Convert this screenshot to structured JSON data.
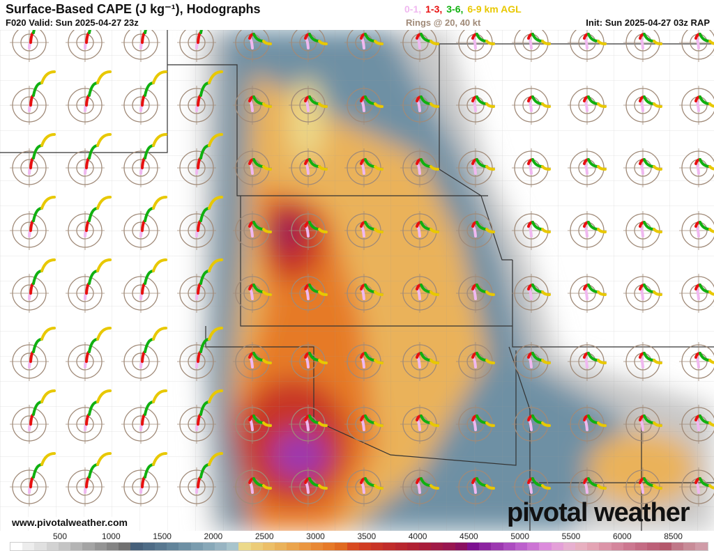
{
  "header": {
    "title": "Surface-Based CAPE (J kg⁻¹), Hodographs",
    "valid": "F020 Valid: Sun 2025-04-27 23z",
    "init": "Init: Sun 2025-04-27 03z RAP",
    "rings": "Rings @ 20, 40 kt",
    "legend": [
      {
        "label": "0-1,",
        "color": "#f0b8f0"
      },
      {
        "label": "1-3,",
        "color": "#e81010"
      },
      {
        "label": "3-6,",
        "color": "#10b010"
      },
      {
        "label": "6-9 km AGL",
        "color": "#e8c800"
      }
    ]
  },
  "website": "www.pivotalweather.com",
  "logo": "pivotal weather",
  "colorbar": {
    "ticks": [
      "500",
      "1000",
      "1500",
      "2000",
      "2500",
      "3000",
      "3500",
      "4000",
      "4500",
      "5000",
      "5500",
      "6000",
      "8500"
    ],
    "colors": [
      "#ffffff",
      "#ededed",
      "#e0e0e0",
      "#d2d2d2",
      "#c4c4c4",
      "#b4b4b4",
      "#a4a4a4",
      "#949494",
      "#848484",
      "#707070",
      "#46607a",
      "#4e6c86",
      "#587890",
      "#62849a",
      "#6e90a4",
      "#7a9cae",
      "#88a8b8",
      "#98b4c2",
      "#a8c4cc",
      "#ecd98a",
      "#eccc78",
      "#ecbf68",
      "#eab25a",
      "#eaa44c",
      "#ea9640",
      "#e88834",
      "#e67a28",
      "#e06a20",
      "#d84a20",
      "#d03c22",
      "#c83426",
      "#c02c2a",
      "#b8262e",
      "#b02032",
      "#a81c3a",
      "#a01a46",
      "#981650",
      "#8a1060",
      "#7c1090",
      "#8c24a0",
      "#9c38b0",
      "#ac4cc0",
      "#bc60cc",
      "#cc74d4",
      "#dc8cdc",
      "#e4a0d8",
      "#e8b0d0",
      "#e8b0c0",
      "#e4a4b4",
      "#dc94a8",
      "#d4869c",
      "#cc7890",
      "#c46c84",
      "#bc6078",
      "#b4586c",
      "#c07888",
      "#c88c98",
      "#d09ca8"
    ]
  }
}
